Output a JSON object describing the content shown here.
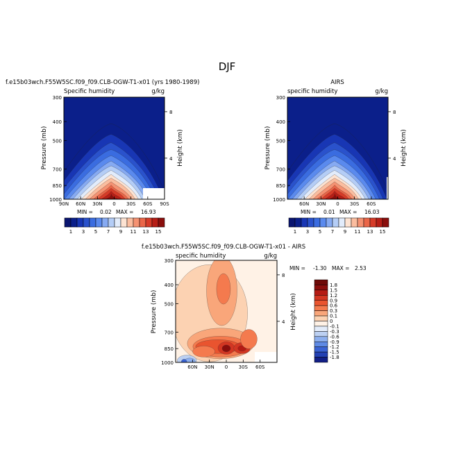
{
  "title": "DJF",
  "chart_data": [
    {
      "type": "contour",
      "panel": "model",
      "case_title": "f.e15b03wch.F55W5SC.f09_f09.CLB-OGW-T1-x01 (yrs 1980-1989)",
      "left_label": "Specific humidity",
      "right_label": "g/kg",
      "ylabel": "Pressure (mb)",
      "ylabel2": "Height (km)",
      "yticks": [
        "300",
        "400",
        "500",
        "700",
        "850",
        "1000"
      ],
      "height_ticks": [
        "8",
        "4"
      ],
      "xticks": [
        "90N",
        "60N",
        "30N",
        "0",
        "30S",
        "60S",
        "90S"
      ],
      "min_label": "MIN =",
      "min_value": "0.02",
      "max_label": "MAX =",
      "max_value": "16.93",
      "colorbar_labels": [
        "1",
        "3",
        "5",
        "7",
        "9",
        "11",
        "13",
        "15"
      ],
      "levels": [
        1,
        2,
        3,
        4,
        5,
        6,
        7,
        8,
        9,
        10,
        11,
        12,
        13,
        14,
        15
      ],
      "peak_latitude": 3,
      "max": 16.93
    },
    {
      "type": "contour",
      "panel": "obs",
      "case_title": "AIRS",
      "left_label": "specific humidity",
      "right_label": "g/kg",
      "ylabel": "Pressure (mb)",
      "ylabel2": "Height (km)",
      "yticks": [
        "300",
        "400",
        "500",
        "700",
        "850",
        "1000"
      ],
      "height_ticks": [
        "8",
        "4"
      ],
      "xticks": [
        "60N",
        "30N",
        "0",
        "30S",
        "60S"
      ],
      "min_label": "MIN =",
      "min_value": "0.01",
      "max_label": "MAX =",
      "max_value": "16.03",
      "colorbar_labels": [
        "1",
        "3",
        "5",
        "7",
        "9",
        "11",
        "13",
        "15"
      ],
      "levels": [
        1,
        2,
        3,
        4,
        5,
        6,
        7,
        8,
        9,
        10,
        11,
        12,
        13,
        14,
        15
      ],
      "peak_latitude": 3,
      "max": 16.03
    },
    {
      "type": "contour",
      "panel": "difference",
      "case_title": "f.e15b03wch.F55W5SC.f09_f09.CLB-OGW-T1-x01 - AIRS",
      "left_label": "specific humidity",
      "right_label": "g/kg",
      "ylabel": "Pressure (mb)",
      "ylabel2": "Height (km)",
      "yticks": [
        "300",
        "400",
        "500",
        "700",
        "850",
        "1000"
      ],
      "height_ticks": [
        "8",
        "4"
      ],
      "xticks": [
        "60N",
        "30N",
        "0",
        "30S",
        "60S"
      ],
      "min_label": "MIN =",
      "min_value": "-1.30",
      "max_label": "MAX =",
      "max_value": "2.53",
      "colorbar_labels": [
        "1.8",
        "1.5",
        "1.2",
        "0.9",
        "0.6",
        "0.3",
        "0.1",
        "0",
        "-0.1",
        "-0.3",
        "-0.6",
        "-0.9",
        "-1.2",
        "-1.5",
        "-1.8"
      ],
      "levels": [
        1.8,
        1.5,
        1.2,
        0.9,
        0.6,
        0.3,
        0.1,
        0,
        -0.1,
        -0.3,
        -0.6,
        -0.9,
        -1.2,
        -1.5,
        -1.8
      ],
      "max": 2.53,
      "min": -1.3
    }
  ],
  "colors": {
    "seq": [
      "#0b1f8a",
      "#1836b4",
      "#2a52cc",
      "#3a6ce0",
      "#5a8aee",
      "#86aaf2",
      "#b4cdf6",
      "#e2ecfb",
      "#fde3d2",
      "#fbbd9f",
      "#f59272",
      "#ea6648",
      "#d63b28",
      "#b61e16",
      "#8a0e0c"
    ],
    "div": [
      "#8a0e0c",
      "#b51b14",
      "#d33622",
      "#e9542f",
      "#f47a4e",
      "#f9a67a",
      "#fcd2b2",
      "#fff2e6",
      "#e3ecfa",
      "#bcd0f2",
      "#8dafee",
      "#5f8ae4",
      "#3a63d4",
      "#2341b4",
      "#121f86"
    ]
  }
}
